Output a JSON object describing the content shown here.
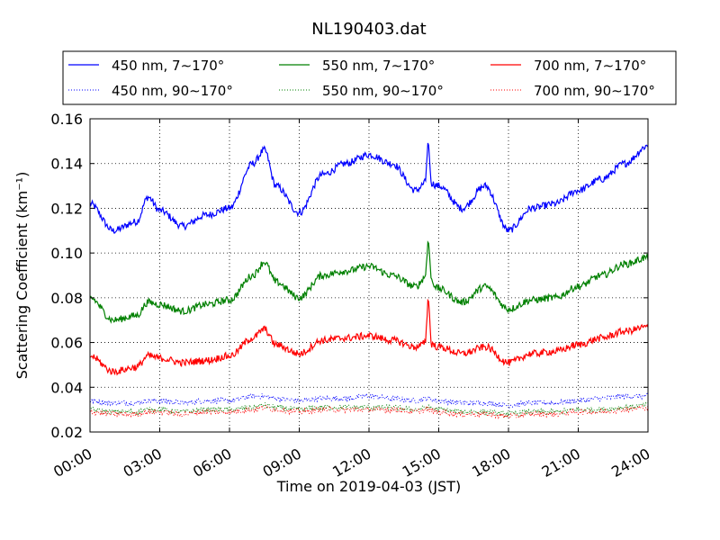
{
  "chart_data": {
    "type": "line",
    "title": "NL190403.dat",
    "xlabel": "Time on 2019-04-03 (JST)",
    "ylabel": "Scattering Coefficient (km⁻¹)",
    "xlim": [
      "00:00",
      "24:00"
    ],
    "ylim": [
      0.02,
      0.16
    ],
    "grid": true,
    "legend_position": "top",
    "x_ticks": [
      "00:00",
      "03:00",
      "06:00",
      "09:00",
      "12:00",
      "15:00",
      "18:00",
      "21:00",
      "24:00"
    ],
    "y_ticks": [
      "0.02",
      "0.04",
      "0.06",
      "0.08",
      "0.10",
      "0.12",
      "0.14",
      "0.16"
    ],
    "x_hours": [
      0,
      1,
      2,
      2.5,
      3,
      4,
      5,
      6,
      7,
      7.5,
      8,
      9,
      10,
      11,
      12,
      13,
      14,
      14.5,
      15,
      16,
      17,
      18,
      19,
      20,
      21,
      22,
      23,
      24
    ],
    "series": [
      {
        "name": "450 nm, 7∼170°",
        "style": "solid",
        "color": "#0000ff",
        "values": [
          0.122,
          0.11,
          0.114,
          0.125,
          0.119,
          0.112,
          0.117,
          0.12,
          0.14,
          0.146,
          0.13,
          0.118,
          0.135,
          0.14,
          0.144,
          0.14,
          0.128,
          0.132,
          0.13,
          0.12,
          0.13,
          0.11,
          0.12,
          0.122,
          0.128,
          0.133,
          0.14,
          0.148
        ]
      },
      {
        "name": "450 nm, 90∼170°",
        "style": "dotted",
        "color": "#0000ff",
        "values": [
          0.034,
          0.033,
          0.033,
          0.034,
          0.034,
          0.033,
          0.034,
          0.034,
          0.036,
          0.036,
          0.035,
          0.034,
          0.035,
          0.035,
          0.036,
          0.035,
          0.034,
          0.035,
          0.034,
          0.033,
          0.033,
          0.032,
          0.033,
          0.033,
          0.034,
          0.035,
          0.036,
          0.036
        ]
      },
      {
        "name": "550 nm, 7∼170°",
        "style": "solid",
        "color": "#008000",
        "values": [
          0.08,
          0.07,
          0.072,
          0.078,
          0.077,
          0.074,
          0.077,
          0.079,
          0.09,
          0.096,
          0.087,
          0.08,
          0.09,
          0.092,
          0.094,
          0.09,
          0.085,
          0.09,
          0.084,
          0.078,
          0.085,
          0.075,
          0.079,
          0.08,
          0.085,
          0.09,
          0.095,
          0.098
        ]
      },
      {
        "name": "550 nm, 90∼170°",
        "style": "dotted",
        "color": "#008000",
        "values": [
          0.03,
          0.029,
          0.029,
          0.03,
          0.03,
          0.029,
          0.03,
          0.03,
          0.031,
          0.032,
          0.031,
          0.03,
          0.031,
          0.031,
          0.031,
          0.031,
          0.03,
          0.031,
          0.03,
          0.029,
          0.029,
          0.028,
          0.029,
          0.029,
          0.03,
          0.03,
          0.031,
          0.032
        ]
      },
      {
        "name": "700 nm, 7∼170°",
        "style": "solid",
        "color": "#ff0000",
        "values": [
          0.054,
          0.047,
          0.049,
          0.054,
          0.053,
          0.051,
          0.052,
          0.054,
          0.062,
          0.066,
          0.059,
          0.055,
          0.061,
          0.062,
          0.063,
          0.061,
          0.058,
          0.06,
          0.058,
          0.055,
          0.058,
          0.051,
          0.055,
          0.056,
          0.059,
          0.062,
          0.065,
          0.067
        ]
      },
      {
        "name": "700 nm, 90∼170°",
        "style": "dotted",
        "color": "#ff0000",
        "values": [
          0.029,
          0.028,
          0.028,
          0.029,
          0.029,
          0.028,
          0.029,
          0.029,
          0.03,
          0.031,
          0.03,
          0.029,
          0.03,
          0.03,
          0.03,
          0.03,
          0.029,
          0.03,
          0.029,
          0.028,
          0.028,
          0.027,
          0.028,
          0.028,
          0.029,
          0.029,
          0.03,
          0.031
        ]
      }
    ],
    "spikes": [
      {
        "series": "450 nm, 7∼170°",
        "x_hour": 14.55,
        "peak": 0.152
      },
      {
        "series": "550 nm, 7∼170°",
        "x_hour": 14.55,
        "peak": 0.108
      },
      {
        "series": "700 nm, 7∼170°",
        "x_hour": 14.55,
        "peak": 0.083
      }
    ]
  }
}
